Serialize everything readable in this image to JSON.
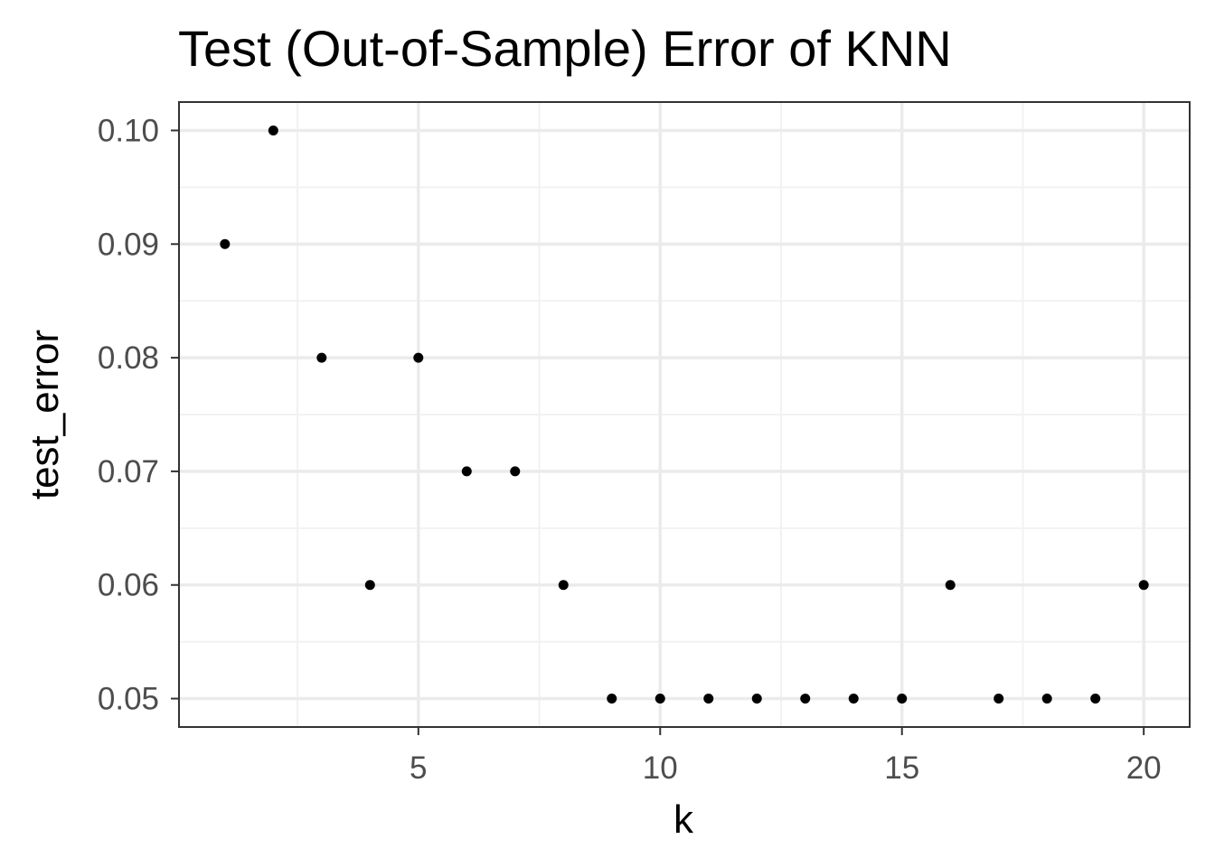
{
  "chart_data": {
    "type": "scatter",
    "title": "Test (Out-of-Sample) Error of KNN",
    "xlabel": "k",
    "ylabel": "test_error",
    "x": [
      1,
      2,
      3,
      4,
      5,
      6,
      7,
      8,
      9,
      10,
      11,
      12,
      13,
      14,
      15,
      16,
      17,
      18,
      19,
      20
    ],
    "y": [
      0.09,
      0.1,
      0.08,
      0.06,
      0.08,
      0.07,
      0.07,
      0.06,
      0.05,
      0.05,
      0.05,
      0.05,
      0.05,
      0.05,
      0.05,
      0.06,
      0.05,
      0.05,
      0.05,
      0.06
    ],
    "xlim": [
      0.05,
      20.95
    ],
    "ylim": [
      0.0475,
      0.1025
    ],
    "x_ticks": [
      5,
      10,
      15,
      20
    ],
    "x_tick_labels": [
      "5",
      "10",
      "15",
      "20"
    ],
    "x_minor_ticks": [
      2.5,
      7.5,
      12.5,
      17.5
    ],
    "y_ticks": [
      0.05,
      0.06,
      0.07,
      0.08,
      0.09,
      0.1
    ],
    "y_tick_labels": [
      "0.05",
      "0.06",
      "0.07",
      "0.08",
      "0.09",
      "0.10"
    ],
    "y_minor_ticks": [
      0.055,
      0.065,
      0.075,
      0.085,
      0.095
    ],
    "grid": true,
    "legend": "none",
    "colors": {
      "point": "#000000",
      "grid_major": "#ebebeb",
      "grid_minor": "#f2f2f2",
      "panel_border": "#333333",
      "tick_label": "#4d4d4d"
    }
  }
}
